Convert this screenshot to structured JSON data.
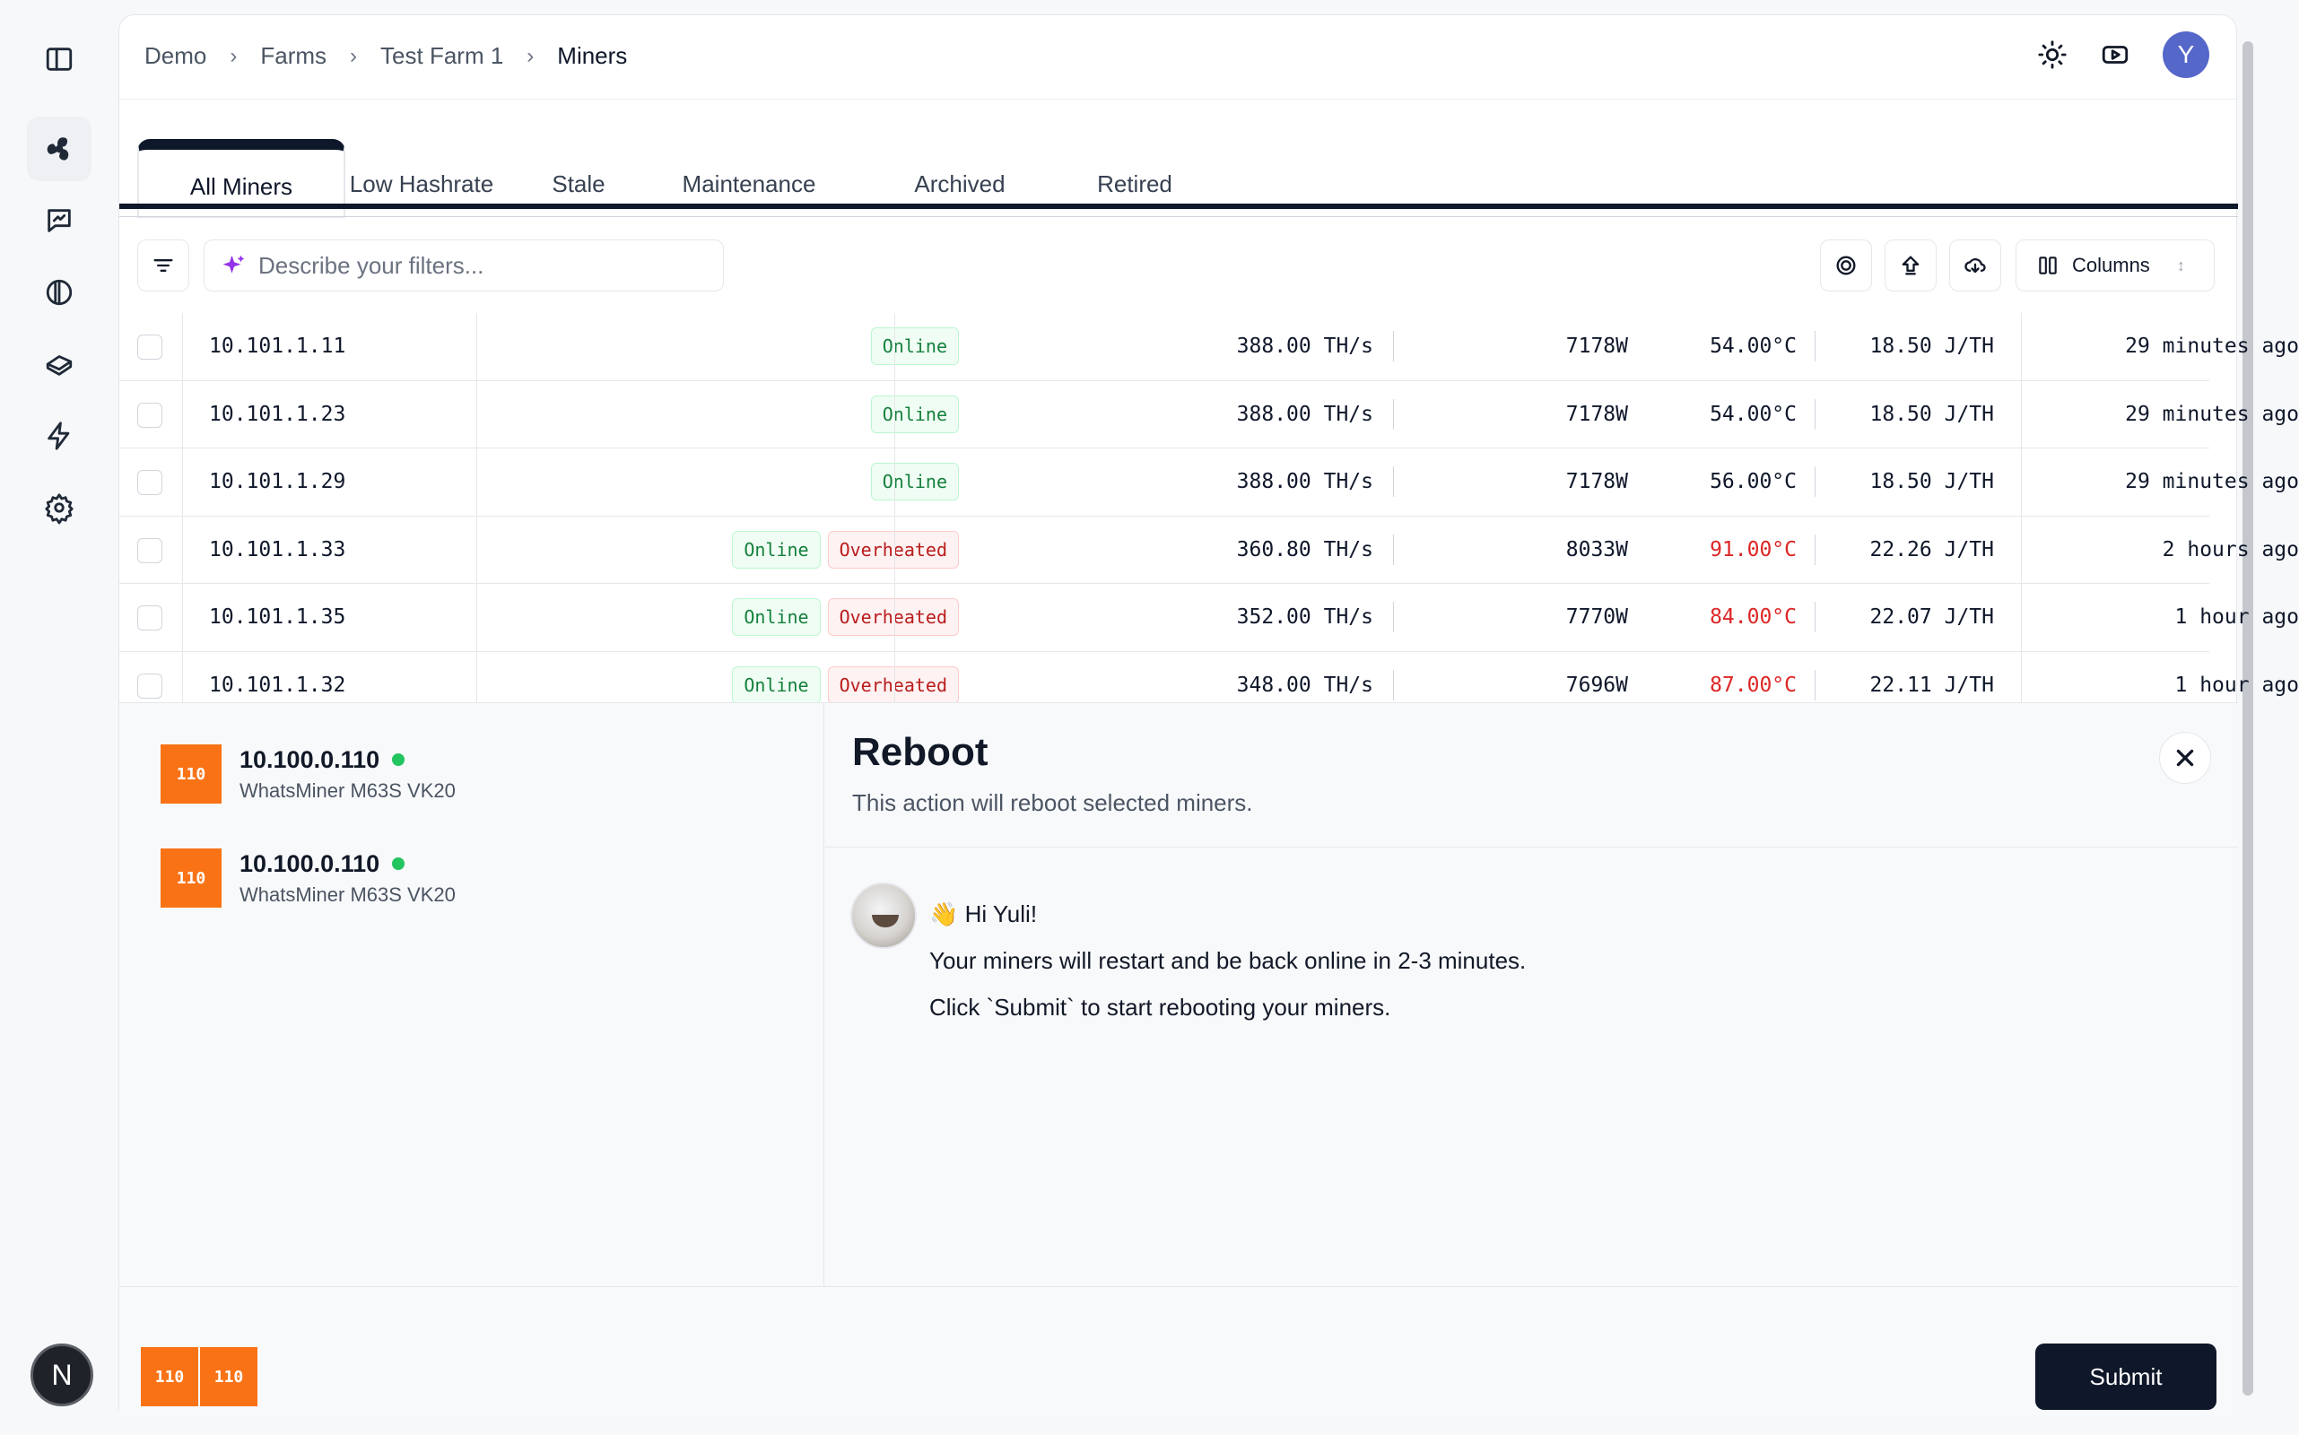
{
  "breadcrumb": [
    "Demo",
    "Farms",
    "Test Farm 1",
    "Miners"
  ],
  "header": {
    "avatar_initial": "Y"
  },
  "rail": {
    "bottom_badge": "N"
  },
  "tabs": [
    {
      "label": "All Miners",
      "active": true
    },
    {
      "label": "Low Hashrate"
    },
    {
      "label": "Stale"
    },
    {
      "label": "Maintenance"
    },
    {
      "label": "Archived"
    },
    {
      "label": "Retired"
    }
  ],
  "toolbar": {
    "filter_placeholder": "Describe your filters...",
    "columns_label": "Columns"
  },
  "rows": [
    {
      "ip": "10.101.1.11",
      "status": [
        "Online"
      ],
      "hashrate": "388.00 TH/s",
      "power": "7178W",
      "temp": "54.00°C",
      "temp_hot": false,
      "efficiency": "18.50 J/TH",
      "seen": "29 minutes ago"
    },
    {
      "ip": "10.101.1.23",
      "status": [
        "Online"
      ],
      "hashrate": "388.00 TH/s",
      "power": "7178W",
      "temp": "54.00°C",
      "temp_hot": false,
      "efficiency": "18.50 J/TH",
      "seen": "29 minutes ago"
    },
    {
      "ip": "10.101.1.29",
      "status": [
        "Online"
      ],
      "hashrate": "388.00 TH/s",
      "power": "7178W",
      "temp": "56.00°C",
      "temp_hot": false,
      "efficiency": "18.50 J/TH",
      "seen": "29 minutes ago"
    },
    {
      "ip": "10.101.1.33",
      "status": [
        "Online",
        "Overheated"
      ],
      "hashrate": "360.80 TH/s",
      "power": "8033W",
      "temp": "91.00°C",
      "temp_hot": true,
      "efficiency": "22.26 J/TH",
      "seen": "2 hours ago"
    },
    {
      "ip": "10.101.1.35",
      "status": [
        "Online",
        "Overheated"
      ],
      "hashrate": "352.00 TH/s",
      "power": "7770W",
      "temp": "84.00°C",
      "temp_hot": true,
      "efficiency": "22.07 J/TH",
      "seen": "1 hour ago"
    },
    {
      "ip": "10.101.1.32",
      "status": [
        "Online",
        "Overheated"
      ],
      "hashrate": "348.00 TH/s",
      "power": "7696W",
      "temp": "87.00°C",
      "temp_hot": true,
      "efficiency": "22.11 J/TH",
      "seen": "1 hour ago"
    }
  ],
  "selected_miners": [
    {
      "badge": "110",
      "ip": "10.100.0.110",
      "model": "WhatsMiner M63S VK20"
    },
    {
      "badge": "110",
      "ip": "10.100.0.110",
      "model": "WhatsMiner M63S VK20"
    }
  ],
  "dialog": {
    "title": "Reboot",
    "subtitle": "This action will reboot selected miners.",
    "greeting": "👋 Hi Yuli!",
    "line1": "Your miners will restart and be back online in 2-3 minutes.",
    "line2": "Click `Submit` to start rebooting your miners.",
    "submit_label": "Submit"
  },
  "footer_chips": [
    "110",
    "110"
  ],
  "colors": {
    "accent": "#0f172a",
    "miner_badge": "#f97316",
    "ok": "#15803d",
    "hot": "#dc2626"
  }
}
